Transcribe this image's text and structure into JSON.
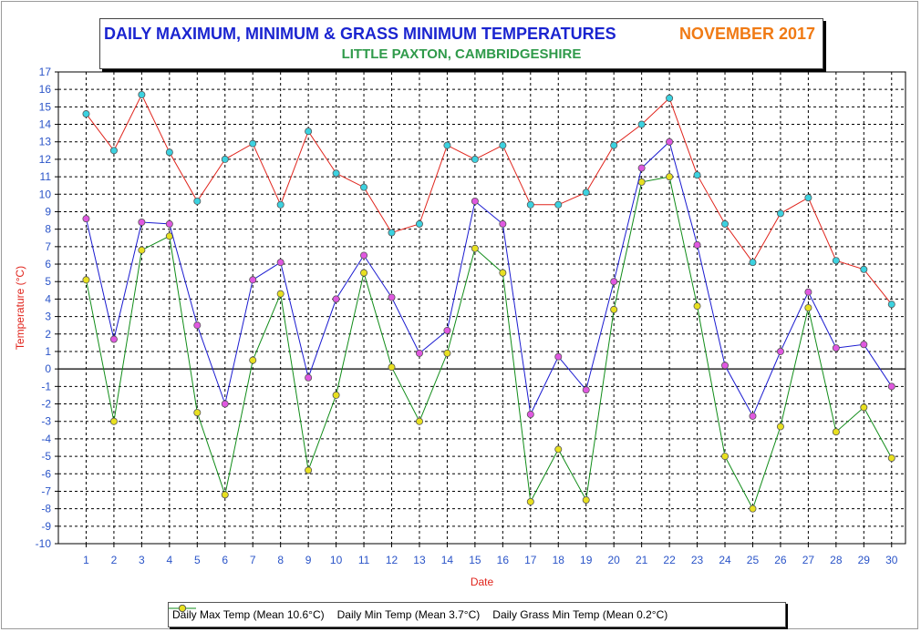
{
  "title": {
    "main": "DAILY MAXIMUM, MINIMUM & GRASS MINIMUM TEMPERATURES",
    "month": "NOVEMBER 2017",
    "subtitle": "LITTLE PAXTON, CAMBRIDGESHIRE"
  },
  "colors": {
    "title": "#1a24d0",
    "month": "#f07a14",
    "subtitle": "#2f9a4a",
    "axis_label": "#e0241c",
    "tick_label": "#2a54c8"
  },
  "chart_data": {
    "type": "line",
    "xlabel": "Date",
    "ylabel": "Temperature (°C)",
    "x": [
      1,
      2,
      3,
      4,
      5,
      6,
      7,
      8,
      9,
      10,
      11,
      12,
      13,
      14,
      15,
      16,
      17,
      18,
      19,
      20,
      21,
      22,
      23,
      24,
      25,
      26,
      27,
      28,
      29,
      30
    ],
    "xlim": [
      0,
      30.5
    ],
    "ylim": [
      -10,
      17
    ],
    "yticks": [
      17,
      16,
      15,
      14,
      13,
      12,
      11,
      10,
      9,
      8,
      7,
      6,
      5,
      4,
      3,
      2,
      1,
      0,
      -1,
      -2,
      -3,
      -4,
      -5,
      -6,
      -7,
      -8,
      -9,
      -10
    ],
    "grid": true,
    "legend_position": "bottom",
    "series": [
      {
        "name": "Daily Max Temp (Mean 10.6°C)",
        "line_color": "#e0241c",
        "marker_color": "#3cd2e0",
        "values": [
          14.6,
          12.5,
          15.7,
          12.4,
          9.6,
          12.0,
          12.9,
          9.4,
          13.6,
          11.2,
          10.4,
          7.8,
          8.3,
          12.8,
          12.0,
          12.8,
          9.4,
          9.4,
          10.1,
          12.8,
          14.0,
          15.5,
          11.1,
          8.3,
          6.1,
          8.9,
          9.8,
          6.2,
          5.7,
          3.7
        ]
      },
      {
        "name": "Daily Min Temp (Mean 3.7°C)",
        "line_color": "#1a1ad0",
        "marker_color": "#e058e0",
        "values": [
          8.6,
          1.7,
          8.4,
          8.3,
          2.5,
          -2.0,
          5.1,
          6.1,
          -0.5,
          4.0,
          6.5,
          4.1,
          0.9,
          2.2,
          9.6,
          8.3,
          -2.6,
          0.7,
          -1.2,
          5.0,
          11.5,
          13.0,
          7.1,
          0.2,
          -2.7,
          1.0,
          4.4,
          1.2,
          1.4,
          -1.0
        ]
      },
      {
        "name": "Daily Grass Min Temp (Mean 0.2°C)",
        "line_color": "#108c18",
        "marker_color": "#e8e020",
        "values": [
          5.1,
          -3.0,
          6.8,
          7.6,
          -2.5,
          -7.2,
          0.5,
          4.3,
          -5.8,
          -1.5,
          5.5,
          0.1,
          -3.0,
          0.9,
          6.9,
          5.5,
          -7.6,
          -4.6,
          -7.5,
          3.4,
          10.7,
          11.0,
          3.6,
          -5.0,
          -8.0,
          -3.3,
          3.5,
          -3.6,
          -2.2,
          -5.1
        ]
      }
    ]
  }
}
